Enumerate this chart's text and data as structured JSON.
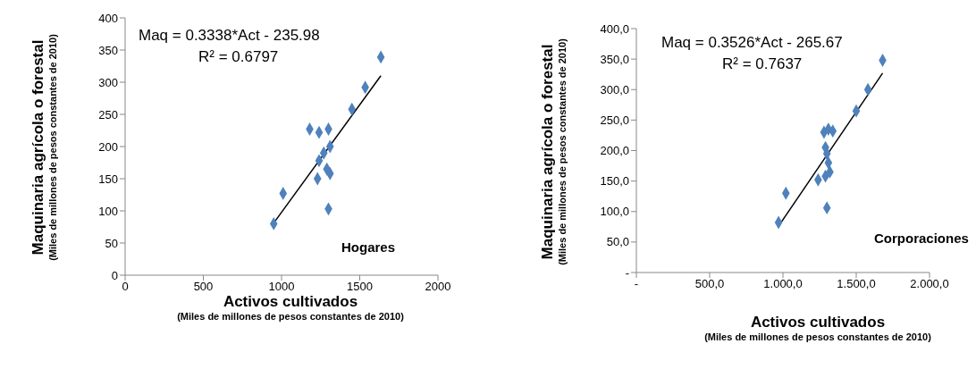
{
  "chart_data": [
    {
      "type": "scatter",
      "xlabel": "Activos cultivados\n(Miles de millones de pesos constantes de 2010)",
      "ylabel": "Maquinaria agrícola o forestal\n(Miles de millones de pesos constantes de 2010)",
      "xlim": [
        0,
        2000
      ],
      "xticks": [
        0,
        500,
        1000,
        1500,
        2000
      ],
      "ylim": [
        0,
        400
      ],
      "yticks": [
        0,
        50,
        100,
        150,
        200,
        250,
        300,
        350,
        400
      ],
      "annotations": [
        "Maq = 0.3338*Act - 235.98",
        "R² = 0.6797",
        "Hogares"
      ],
      "series": [
        {
          "color": "#4f81bd",
          "marker": "diamond",
          "x": [
            950,
            1010,
            1180,
            1240,
            1300,
            1310,
            1270,
            1240,
            1290,
            1310,
            1230,
            1300,
            1450,
            1535,
            1635
          ],
          "values": [
            80,
            127,
            227,
            222,
            227,
            200,
            190,
            178,
            165,
            158,
            150,
            103,
            258,
            292,
            339
          ]
        },
        {
          "type": "line",
          "color": "#000000",
          "x": [
            950,
            1635
          ],
          "values": [
            81,
            310
          ]
        }
      ]
    },
    {
      "type": "scatter",
      "xlabel": "Activos cultivados\n(Miles de millones de pesos constantes de 2010)",
      "ylabel": "Maquinaria agrícola o forestal\n(Miles de millones de pesos constantes de 2010)",
      "xlim": [
        0,
        2000
      ],
      "xticks": [
        {
          "value": 0,
          "label": "-"
        },
        {
          "value": 500,
          "label": "500,0"
        },
        {
          "value": 1000,
          "label": "1.000,0"
        },
        {
          "value": 1500,
          "label": "1.500,0"
        },
        {
          "value": 2000,
          "label": "2.000,0"
        }
      ],
      "ylim": [
        0,
        400
      ],
      "yticks": [
        {
          "value": 0,
          "label": "-"
        },
        {
          "value": 50,
          "label": "50,0"
        },
        {
          "value": 100,
          "label": "100,0"
        },
        {
          "value": 150,
          "label": "150,0"
        },
        {
          "value": 200,
          "label": "200,0"
        },
        {
          "value": 250,
          "label": "250,0"
        },
        {
          "value": 300,
          "label": "300,0"
        },
        {
          "value": 350,
          "label": "350,0"
        },
        {
          "value": 400,
          "label": "400,0"
        }
      ],
      "annotations": [
        "Maq = 0.3526*Act - 265.67",
        "R² = 0.7637",
        "Corporaciones"
      ],
      "series": [
        {
          "color": "#4f81bd",
          "marker": "diamond",
          "x": [
            970,
            1020,
            1240,
            1280,
            1310,
            1340,
            1290,
            1300,
            1310,
            1320,
            1290,
            1300,
            1500,
            1580,
            1680
          ],
          "values": [
            82,
            130,
            152,
            230,
            235,
            232,
            205,
            195,
            180,
            165,
            158,
            106,
            265,
            300,
            348
          ]
        },
        {
          "type": "line",
          "color": "#000000",
          "x": [
            970,
            1680
          ],
          "values": [
            76,
            327
          ]
        }
      ]
    }
  ]
}
